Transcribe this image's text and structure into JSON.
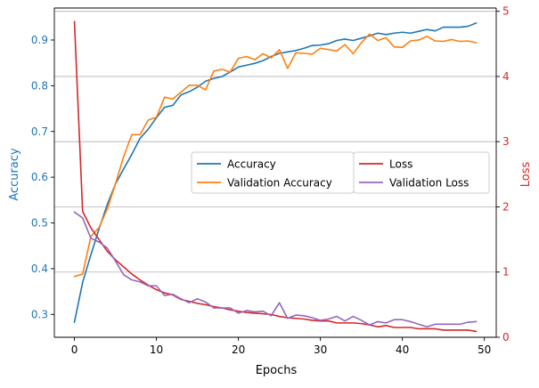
{
  "chart_data": {
    "type": "line",
    "title": "",
    "xlabel": "Epochs",
    "ylabel_left": "Accuracy",
    "ylabel_right": "Loss",
    "xlim": [
      -2.45,
      51.45
    ],
    "ylim_left": [
      0.25,
      0.97
    ],
    "ylim_right": [
      0,
      5.05
    ],
    "x_ticks": [
      0,
      10,
      20,
      30,
      40,
      50
    ],
    "y_ticks_left": [
      0.3,
      0.4,
      0.5,
      0.6,
      0.7,
      0.8,
      0.9
    ],
    "y_ticks_right": [
      0,
      1,
      2,
      3,
      4,
      5
    ],
    "grid": "horizontal gridlines at right-axis (loss) ticks",
    "left_axis_color": "#1f77b4",
    "right_axis_color": "#d62728",
    "x": [
      0,
      1,
      2,
      3,
      4,
      5,
      6,
      7,
      8,
      9,
      10,
      11,
      12,
      13,
      14,
      15,
      16,
      17,
      18,
      19,
      20,
      21,
      22,
      23,
      24,
      25,
      26,
      27,
      28,
      29,
      30,
      31,
      32,
      33,
      34,
      35,
      36,
      37,
      38,
      39,
      40,
      41,
      42,
      43,
      44,
      45,
      46,
      47,
      48,
      49
    ],
    "series": [
      {
        "name": "Accuracy",
        "axis": "left",
        "color": "#1f77b4",
        "values": [
          0.283,
          0.37,
          0.43,
          0.487,
          0.54,
          0.585,
          0.618,
          0.65,
          0.685,
          0.705,
          0.73,
          0.753,
          0.757,
          0.78,
          0.787,
          0.797,
          0.81,
          0.816,
          0.82,
          0.83,
          0.841,
          0.845,
          0.849,
          0.855,
          0.864,
          0.871,
          0.874,
          0.877,
          0.882,
          0.888,
          0.889,
          0.892,
          0.899,
          0.902,
          0.899,
          0.904,
          0.909,
          0.915,
          0.912,
          0.915,
          0.917,
          0.915,
          0.919,
          0.923,
          0.92,
          0.928,
          0.928,
          0.928,
          0.93,
          0.937
        ]
      },
      {
        "name": "Validation Accuracy",
        "axis": "left",
        "color": "#ff7f0e",
        "values": [
          0.383,
          0.388,
          0.47,
          0.49,
          0.53,
          0.585,
          0.645,
          0.693,
          0.693,
          0.725,
          0.731,
          0.775,
          0.771,
          0.786,
          0.801,
          0.801,
          0.791,
          0.832,
          0.836,
          0.83,
          0.86,
          0.864,
          0.857,
          0.87,
          0.861,
          0.879,
          0.838,
          0.872,
          0.871,
          0.869,
          0.882,
          0.879,
          0.876,
          0.89,
          0.87,
          0.894,
          0.913,
          0.899,
          0.905,
          0.885,
          0.884,
          0.898,
          0.9,
          0.908,
          0.898,
          0.897,
          0.901,
          0.897,
          0.898,
          0.894
        ]
      },
      {
        "name": "Loss",
        "axis": "right",
        "color": "#d62728",
        "values": [
          4.84,
          1.93,
          1.68,
          1.5,
          1.32,
          1.19,
          1.08,
          0.97,
          0.88,
          0.8,
          0.73,
          0.68,
          0.65,
          0.58,
          0.55,
          0.52,
          0.5,
          0.47,
          0.45,
          0.42,
          0.4,
          0.38,
          0.37,
          0.36,
          0.35,
          0.32,
          0.3,
          0.29,
          0.28,
          0.26,
          0.25,
          0.25,
          0.22,
          0.22,
          0.22,
          0.21,
          0.19,
          0.16,
          0.18,
          0.15,
          0.15,
          0.15,
          0.13,
          0.13,
          0.13,
          0.11,
          0.11,
          0.11,
          0.11,
          0.09
        ]
      },
      {
        "name": "Validation Loss",
        "axis": "right",
        "color": "#9467bd",
        "values": [
          1.92,
          1.83,
          1.52,
          1.46,
          1.37,
          1.17,
          0.96,
          0.88,
          0.85,
          0.79,
          0.79,
          0.64,
          0.66,
          0.59,
          0.53,
          0.59,
          0.54,
          0.45,
          0.45,
          0.45,
          0.37,
          0.41,
          0.39,
          0.4,
          0.33,
          0.53,
          0.29,
          0.34,
          0.33,
          0.3,
          0.26,
          0.28,
          0.32,
          0.25,
          0.32,
          0.26,
          0.19,
          0.24,
          0.22,
          0.27,
          0.27,
          0.24,
          0.2,
          0.16,
          0.2,
          0.2,
          0.2,
          0.2,
          0.23,
          0.24
        ]
      }
    ],
    "legends": [
      {
        "placement": "center-left",
        "entries": [
          "Accuracy",
          "Validation Accuracy"
        ]
      },
      {
        "placement": "center-right",
        "entries": [
          "Loss",
          "Validation Loss"
        ]
      }
    ]
  }
}
